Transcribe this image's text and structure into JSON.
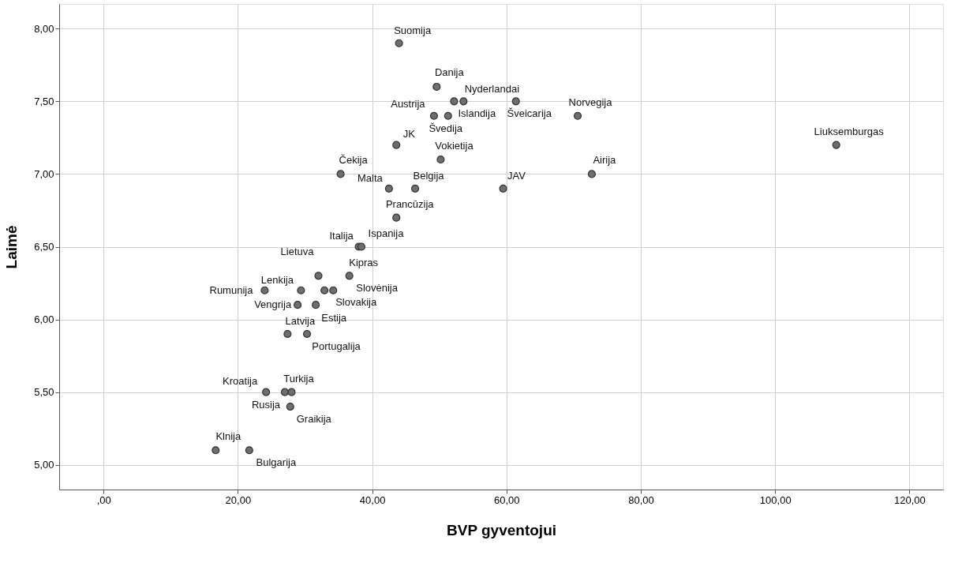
{
  "chart_data": {
    "type": "scatter",
    "xlabel": "BVP gyventojui",
    "ylabel": "Laimė",
    "x": [
      44.0,
      49.6,
      53.6,
      52.2,
      61.4,
      49.2,
      51.3,
      70.6,
      43.6,
      50.2,
      35.3,
      72.7,
      42.5,
      46.4,
      59.5,
      43.6,
      109.1,
      38.0,
      38.4,
      32.0,
      36.6,
      24.0,
      29.4,
      32.9,
      34.2,
      28.9,
      31.6,
      27.4,
      30.3,
      24.2,
      27.0,
      28.0,
      27.8,
      16.7,
      21.7
    ],
    "values": [
      7.9,
      7.6,
      7.5,
      7.5,
      7.5,
      7.4,
      7.4,
      7.4,
      7.2,
      7.1,
      7.0,
      7.0,
      6.9,
      6.9,
      6.9,
      6.7,
      7.2,
      6.5,
      6.5,
      6.3,
      6.3,
      6.2,
      6.2,
      6.2,
      6.2,
      6.1,
      6.1,
      5.9,
      5.9,
      5.5,
      5.5,
      5.5,
      5.4,
      5.1,
      5.1
    ],
    "color": "#6e6e6e",
    "marker": "circle",
    "grid": true,
    "xlim": [
      -6.6,
      125
    ],
    "ylim": [
      4.83,
      8.17
    ],
    "xticks": [
      {
        "value": 0,
        "label": ",00"
      },
      {
        "value": 20,
        "label": "20,00"
      },
      {
        "value": 40,
        "label": "40,00"
      },
      {
        "value": 60,
        "label": "60,00"
      },
      {
        "value": 80,
        "label": "80,00"
      },
      {
        "value": 100,
        "label": "100,00"
      },
      {
        "value": 120,
        "label": "120,00"
      }
    ],
    "yticks": [
      {
        "value": 5,
        "label": "5,00"
      },
      {
        "value": 5.5,
        "label": "5,50"
      },
      {
        "value": 6,
        "label": "6,00"
      },
      {
        "value": 6.5,
        "label": "6,50"
      },
      {
        "value": 7,
        "label": "7,00"
      },
      {
        "value": 7.5,
        "label": "7,50"
      },
      {
        "value": 8,
        "label": "8,00"
      }
    ],
    "annotations": [
      {
        "text": "Suomija",
        "x": 44.0,
        "y": 7.9
      },
      {
        "text": "Danija",
        "x": 49.6,
        "y": 7.6
      },
      {
        "text": "Nyderlandai",
        "x": 53.6,
        "y": 7.5
      },
      {
        "text": "Islandija",
        "x": 52.2,
        "y": 7.5
      },
      {
        "text": "Šveicarija",
        "x": 61.4,
        "y": 7.5
      },
      {
        "text": "Austrija",
        "x": 49.2,
        "y": 7.4
      },
      {
        "text": "Švedija",
        "x": 51.3,
        "y": 7.4
      },
      {
        "text": "Norvegija",
        "x": 70.6,
        "y": 7.4
      },
      {
        "text": "JK",
        "x": 43.6,
        "y": 7.2
      },
      {
        "text": "Vokietija",
        "x": 50.2,
        "y": 7.1
      },
      {
        "text": "Čekija",
        "x": 35.3,
        "y": 7.0
      },
      {
        "text": "Airija",
        "x": 72.7,
        "y": 7.0
      },
      {
        "text": "Malta",
        "x": 42.5,
        "y": 6.9
      },
      {
        "text": "Belgija",
        "x": 46.4,
        "y": 6.9
      },
      {
        "text": "JAV",
        "x": 59.5,
        "y": 6.9
      },
      {
        "text": "Prancūzija",
        "x": 43.6,
        "y": 6.7
      },
      {
        "text": "Liuksemburgas",
        "x": 109.1,
        "y": 7.2
      },
      {
        "text": "Italija",
        "x": 38.0,
        "y": 6.5
      },
      {
        "text": "Ispanija",
        "x": 38.4,
        "y": 6.5
      },
      {
        "text": "Lietuva",
        "x": 32.0,
        "y": 6.3
      },
      {
        "text": "Kipras",
        "x": 36.6,
        "y": 6.3
      },
      {
        "text": "Rumunija",
        "x": 24.0,
        "y": 6.2
      },
      {
        "text": "Lenkija",
        "x": 29.4,
        "y": 6.2
      },
      {
        "text": "Slovakija",
        "x": 32.9,
        "y": 6.2
      },
      {
        "text": "Slovėnija",
        "x": 34.2,
        "y": 6.2
      },
      {
        "text": "Vengrija",
        "x": 28.9,
        "y": 6.1
      },
      {
        "text": "Estija",
        "x": 31.6,
        "y": 6.1
      },
      {
        "text": "Latvija",
        "x": 27.4,
        "y": 5.9
      },
      {
        "text": "Portugalija",
        "x": 30.3,
        "y": 5.9
      },
      {
        "text": "Kroatija",
        "x": 24.2,
        "y": 5.5
      },
      {
        "text": "Rusija",
        "x": 27.0,
        "y": 5.5
      },
      {
        "text": "Turkija",
        "x": 28.0,
        "y": 5.5
      },
      {
        "text": "Graikija",
        "x": 27.8,
        "y": 5.4
      },
      {
        "text": "Klnija",
        "x": 16.7,
        "y": 5.1
      },
      {
        "text": "Bulgarija",
        "x": 21.7,
        "y": 5.1
      }
    ]
  }
}
